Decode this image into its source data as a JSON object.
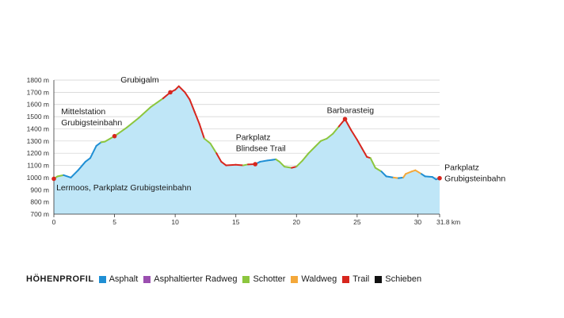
{
  "chart_data": {
    "type": "area",
    "title": "",
    "xlabel": "",
    "ylabel": "",
    "xlim": [
      0,
      31.8
    ],
    "ylim": [
      700,
      1800
    ],
    "x_ticks": [
      "0",
      "5",
      "10",
      "15",
      "20",
      "25",
      "30",
      "31.8 km"
    ],
    "x_tick_values": [
      0,
      5,
      10,
      15,
      20,
      25,
      30,
      31.8
    ],
    "y_ticks": [
      "700 m",
      "800 m",
      "900 m",
      "1000 m",
      "1100 m",
      "1200 m",
      "1300 m",
      "1400 m",
      "1500 m",
      "1600 m",
      "1700 m",
      "1800 m"
    ],
    "y_tick_values": [
      700,
      800,
      900,
      1000,
      1100,
      1200,
      1300,
      1400,
      1500,
      1600,
      1700,
      1800
    ],
    "grid": true,
    "fill_color": "#bfe6f7",
    "profile": [
      [
        0,
        990,
        "asphalt"
      ],
      [
        0.3,
        1010,
        "schotter"
      ],
      [
        0.8,
        1020,
        "schotter"
      ],
      [
        1.4,
        1000,
        "asphalt"
      ],
      [
        2.0,
        1060,
        "asphalt"
      ],
      [
        2.6,
        1130,
        "asphalt"
      ],
      [
        3.0,
        1160,
        "asphalt"
      ],
      [
        3.5,
        1260,
        "asphalt"
      ],
      [
        3.9,
        1290,
        "asphalt"
      ],
      [
        4.2,
        1295,
        "schotter"
      ],
      [
        5.0,
        1340,
        "schotter"
      ],
      [
        6.0,
        1410,
        "schotter"
      ],
      [
        7.0,
        1490,
        "schotter"
      ],
      [
        8.0,
        1580,
        "schotter"
      ],
      [
        9.0,
        1650,
        "schotter"
      ],
      [
        9.6,
        1700,
        "trail"
      ],
      [
        10.0,
        1720,
        "trail"
      ],
      [
        10.3,
        1750,
        "trail"
      ],
      [
        10.8,
        1700,
        "trail"
      ],
      [
        11.2,
        1640,
        "trail"
      ],
      [
        11.6,
        1540,
        "trail"
      ],
      [
        12.0,
        1440,
        "trail"
      ],
      [
        12.4,
        1320,
        "trail"
      ],
      [
        12.9,
        1280,
        "schotter"
      ],
      [
        13.4,
        1200,
        "schotter"
      ],
      [
        13.8,
        1130,
        "trail"
      ],
      [
        14.2,
        1100,
        "trail"
      ],
      [
        15.0,
        1105,
        "trail"
      ],
      [
        15.6,
        1100,
        "trail"
      ],
      [
        16.0,
        1108,
        "schotter"
      ],
      [
        16.6,
        1110,
        "trail"
      ],
      [
        17.0,
        1130,
        "asphalt"
      ],
      [
        17.6,
        1140,
        "asphalt"
      ],
      [
        18.0,
        1145,
        "asphalt"
      ],
      [
        18.3,
        1150,
        "asphalt"
      ],
      [
        18.6,
        1130,
        "schotter"
      ],
      [
        19.0,
        1090,
        "schotter"
      ],
      [
        19.6,
        1080,
        "schotter"
      ],
      [
        20.0,
        1090,
        "trail"
      ],
      [
        20.5,
        1140,
        "schotter"
      ],
      [
        21.0,
        1200,
        "schotter"
      ],
      [
        21.5,
        1250,
        "schotter"
      ],
      [
        22.0,
        1300,
        "schotter"
      ],
      [
        22.5,
        1320,
        "schotter"
      ],
      [
        23.0,
        1360,
        "schotter"
      ],
      [
        23.5,
        1420,
        "schotter"
      ],
      [
        24.0,
        1480,
        "trail"
      ],
      [
        24.5,
        1390,
        "trail"
      ],
      [
        25.0,
        1310,
        "trail"
      ],
      [
        25.4,
        1240,
        "trail"
      ],
      [
        25.8,
        1170,
        "trail"
      ],
      [
        26.1,
        1160,
        "trail"
      ],
      [
        26.5,
        1080,
        "schotter"
      ],
      [
        27.0,
        1050,
        "schotter"
      ],
      [
        27.4,
        1010,
        "asphalt"
      ],
      [
        28.0,
        1000,
        "asphalt"
      ],
      [
        28.4,
        995,
        "waldweg"
      ],
      [
        28.8,
        1000,
        "asphalt"
      ],
      [
        29.0,
        1030,
        "waldweg"
      ],
      [
        29.5,
        1050,
        "waldweg"
      ],
      [
        29.8,
        1060,
        "waldweg"
      ],
      [
        30.3,
        1030,
        "waldweg"
      ],
      [
        30.6,
        1010,
        "asphalt"
      ],
      [
        31.2,
        1005,
        "asphalt"
      ],
      [
        31.5,
        985,
        "asphalt"
      ],
      [
        31.8,
        995,
        "asphalt"
      ]
    ],
    "markers": [
      {
        "x": 0,
        "y": 990
      },
      {
        "x": 5.0,
        "y": 1340
      },
      {
        "x": 9.6,
        "y": 1700
      },
      {
        "x": 16.6,
        "y": 1110
      },
      {
        "x": 24.0,
        "y": 1480
      },
      {
        "x": 31.8,
        "y": 995
      }
    ],
    "annotations": [
      {
        "lines": [
          "Lermoos, Parkplatz Grubigsteinbahn"
        ],
        "x": 0.2,
        "y": 895,
        "anchor": "start"
      },
      {
        "lines": [
          "Mittelstation",
          "Grubigsteinbahn"
        ],
        "x": 0.6,
        "y": 1520,
        "anchor": "start"
      },
      {
        "lines": [
          "Grubigalm"
        ],
        "x": 5.5,
        "y": 1780,
        "anchor": "start"
      },
      {
        "lines": [
          "Parkplatz",
          "Blindsee Trail"
        ],
        "x": 15.0,
        "y": 1310,
        "anchor": "start"
      },
      {
        "lines": [
          "Barbarasteig"
        ],
        "x": 22.5,
        "y": 1530,
        "anchor": "start"
      },
      {
        "lines": [
          "Parkplatz",
          "Grubigsteinbahn"
        ],
        "x": 32.2,
        "y": 1060,
        "anchor": "start"
      }
    ],
    "marker_color": "#d7261e",
    "surface_colors": {
      "asphalt": "#1f8fd4",
      "asphaltierter_radweg": "#9b4fb0",
      "schotter": "#8cc63e",
      "waldweg": "#f4a83a",
      "trail": "#d7261e",
      "schieben": "#111111"
    }
  },
  "legend": {
    "title": "HÖHENPROFIL",
    "items": [
      {
        "key": "asphalt",
        "label": "Asphalt",
        "color": "#1f8fd4"
      },
      {
        "key": "asphaltierter_radweg",
        "label": "Asphaltierter Radweg",
        "color": "#9b4fb0"
      },
      {
        "key": "schotter",
        "label": "Schotter",
        "color": "#8cc63e"
      },
      {
        "key": "waldweg",
        "label": "Waldweg",
        "color": "#f4a83a"
      },
      {
        "key": "trail",
        "label": "Trail",
        "color": "#d7261e"
      },
      {
        "key": "schieben",
        "label": "Schieben",
        "color": "#111111"
      }
    ]
  }
}
